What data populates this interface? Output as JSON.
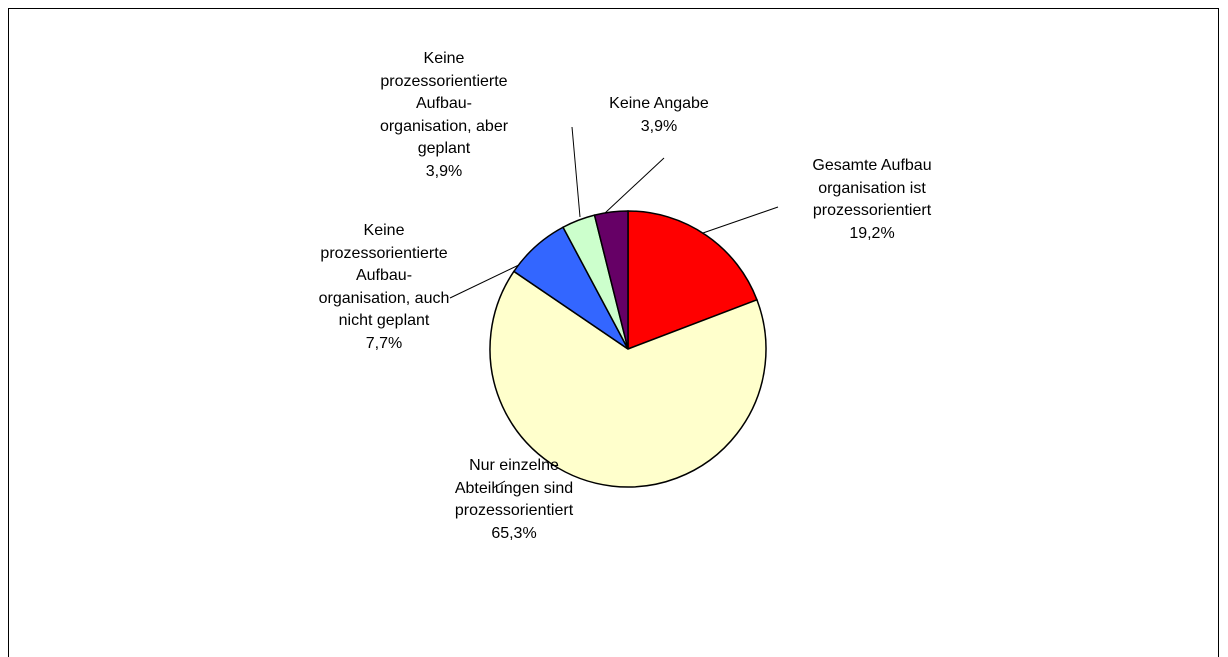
{
  "chart_data": {
    "type": "pie",
    "categories": [
      "Gesamte Aufbau\norganisation ist\nprozessorientiert",
      "Nur einzelne\nAbteilungen sind\nprozessorientiert",
      "Keine\nprozessorientierte\nAufbau-\norganisation, auch\nnicht geplant",
      "Keine\nprozessorientierte\nAufbau-\norganisation, aber\ngeplant",
      "Keine Angabe"
    ],
    "values": [
      19.2,
      65.3,
      7.7,
      3.9,
      3.9
    ],
    "value_labels": [
      "19,2%",
      "65,3%",
      "7,7%",
      "3,9%",
      "3,9%"
    ],
    "colors": [
      "#ff0000",
      "#ffffcc",
      "#3366ff",
      "#ccffcc",
      "#660066"
    ]
  }
}
